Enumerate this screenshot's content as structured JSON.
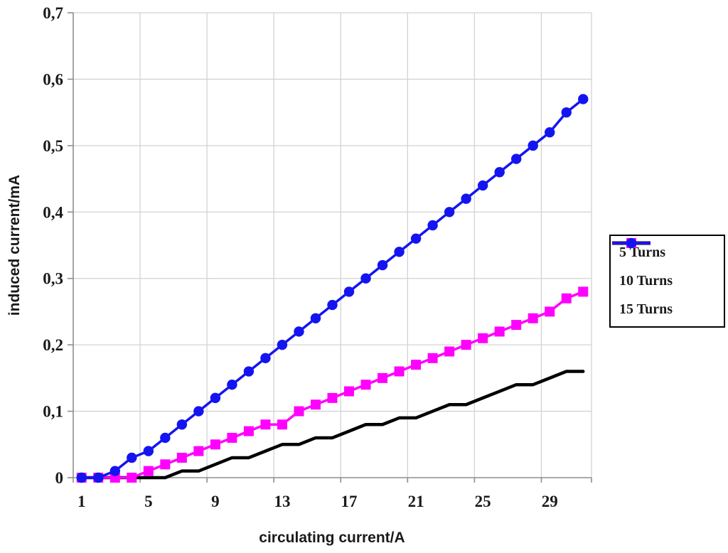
{
  "chart_data": {
    "type": "line",
    "title": "",
    "xlabel": "circulating current/A",
    "ylabel": "induced current/mA",
    "x": [
      1,
      2,
      3,
      4,
      5,
      6,
      7,
      8,
      9,
      10,
      11,
      12,
      13,
      14,
      15,
      16,
      17,
      18,
      19,
      20,
      21,
      22,
      23,
      24,
      25,
      26,
      27,
      28,
      29,
      30,
      31
    ],
    "xlim": [
      1,
      31
    ],
    "ylim": [
      0,
      0.7
    ],
    "grid": true,
    "legend_position": "right",
    "decimal_separator": ",",
    "x_ticks": {
      "values": [
        1,
        5,
        9,
        13,
        17,
        21,
        25,
        29
      ],
      "labels": [
        "1",
        "5",
        "9",
        "13",
        "17",
        "21",
        "25",
        "29"
      ]
    },
    "y_ticks": {
      "values": [
        0,
        0.1,
        0.2,
        0.3,
        0.4,
        0.5,
        0.6,
        0.7
      ],
      "labels": [
        "0",
        "0,1",
        "0,2",
        "0,3",
        "0,4",
        "0,5",
        "0,6",
        "0,7"
      ]
    },
    "colors": {
      "grid": "#d3d3d3",
      "axis": "#8e8e8e",
      "text": "#1a1a1a",
      "legend_border": "#000000"
    },
    "series": [
      {
        "name": "5 Turns",
        "color": "#000000",
        "marker": "none",
        "line_width": 4.5,
        "values": [
          0,
          0,
          0,
          0,
          0,
          0,
          0.01,
          0.01,
          0.02,
          0.03,
          0.03,
          0.04,
          0.05,
          0.05,
          0.06,
          0.06,
          0.07,
          0.08,
          0.08,
          0.09,
          0.09,
          0.1,
          0.11,
          0.11,
          0.12,
          0.13,
          0.14,
          0.14,
          0.15,
          0.16,
          0.16
        ]
      },
      {
        "name": "10 Turns",
        "color": "#ff00ff",
        "marker": "square",
        "line_width": 3.5,
        "values": [
          0,
          0,
          0,
          0,
          0.01,
          0.02,
          0.03,
          0.04,
          0.05,
          0.06,
          0.07,
          0.08,
          0.08,
          0.1,
          0.11,
          0.12,
          0.13,
          0.14,
          0.15,
          0.16,
          0.17,
          0.18,
          0.19,
          0.2,
          0.21,
          0.22,
          0.23,
          0.24,
          0.25,
          0.27,
          0.28
        ]
      },
      {
        "name": "15 Turns",
        "color": "#1414f0",
        "marker": "circle",
        "line_width": 3.5,
        "values": [
          0,
          0,
          0.01,
          0.03,
          0.04,
          0.06,
          0.08,
          0.1,
          0.12,
          0.14,
          0.16,
          0.18,
          0.2,
          0.22,
          0.24,
          0.26,
          0.28,
          0.3,
          0.32,
          0.34,
          0.36,
          0.38,
          0.4,
          0.42,
          0.44,
          0.46,
          0.48,
          0.5,
          0.52,
          0.55,
          0.57
        ]
      }
    ]
  }
}
